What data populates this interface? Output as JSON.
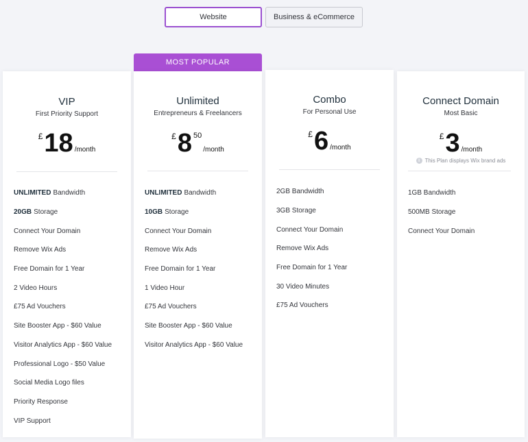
{
  "tabs": {
    "website": "Website",
    "business": "Business & eCommerce"
  },
  "badge": "MOST POPULAR",
  "plans": [
    {
      "name": "VIP",
      "subtitle": "First Priority Support",
      "currency": "£",
      "amount": "18",
      "cents": "",
      "per": "/month",
      "features": [
        {
          "bold": "UNLIMITED",
          "text": "Bandwidth"
        },
        {
          "bold": "20GB",
          "text": "Storage"
        },
        {
          "bold": "",
          "text": "Connect Your Domain"
        },
        {
          "bold": "",
          "text": "Remove Wix Ads"
        },
        {
          "bold": "",
          "text": "Free Domain for 1 Year"
        },
        {
          "bold": "",
          "text": "2 Video Hours"
        },
        {
          "bold": "",
          "text": "£75 Ad Vouchers"
        },
        {
          "bold": "",
          "text": "Site Booster App - $60 Value"
        },
        {
          "bold": "",
          "text": "Visitor Analytics App - $60 Value"
        },
        {
          "bold": "",
          "text": "Professional Logo - $50 Value"
        },
        {
          "bold": "",
          "text": "Social Media Logo files"
        },
        {
          "bold": "",
          "text": "Priority Response"
        },
        {
          "bold": "",
          "text": "VIP Support"
        }
      ]
    },
    {
      "name": "Unlimited",
      "subtitle": "Entrepreneurs & Freelancers",
      "currency": "£",
      "amount": "8",
      "cents": "50",
      "per": "/month",
      "features": [
        {
          "bold": "UNLIMITED",
          "text": "Bandwidth"
        },
        {
          "bold": "10GB",
          "text": "Storage"
        },
        {
          "bold": "",
          "text": "Connect Your Domain"
        },
        {
          "bold": "",
          "text": "Remove Wix Ads"
        },
        {
          "bold": "",
          "text": "Free Domain for 1 Year"
        },
        {
          "bold": "",
          "text": "1 Video Hour"
        },
        {
          "bold": "",
          "text": "£75 Ad Vouchers"
        },
        {
          "bold": "",
          "text": "Site Booster App - $60 Value"
        },
        {
          "bold": "",
          "text": "Visitor Analytics App - $60 Value"
        }
      ]
    },
    {
      "name": "Combo",
      "subtitle": "For Personal Use",
      "currency": "£",
      "amount": "6",
      "cents": "",
      "per": "/month",
      "features": [
        {
          "bold": "",
          "text": "2GB Bandwidth"
        },
        {
          "bold": "",
          "text": "3GB Storage"
        },
        {
          "bold": "",
          "text": "Connect Your Domain"
        },
        {
          "bold": "",
          "text": "Remove Wix Ads"
        },
        {
          "bold": "",
          "text": "Free Domain for 1 Year"
        },
        {
          "bold": "",
          "text": "30 Video Minutes"
        },
        {
          "bold": "",
          "text": "£75 Ad Vouchers"
        }
      ]
    },
    {
      "name": "Connect Domain",
      "subtitle": "Most Basic",
      "currency": "£",
      "amount": "3",
      "cents": "",
      "per": "/month",
      "note": "This Plan displays Wix brand ads",
      "features": [
        {
          "bold": "",
          "text": "1GB Bandwidth"
        },
        {
          "bold": "",
          "text": "500MB Storage"
        },
        {
          "bold": "",
          "text": "Connect Your Domain"
        }
      ]
    }
  ]
}
